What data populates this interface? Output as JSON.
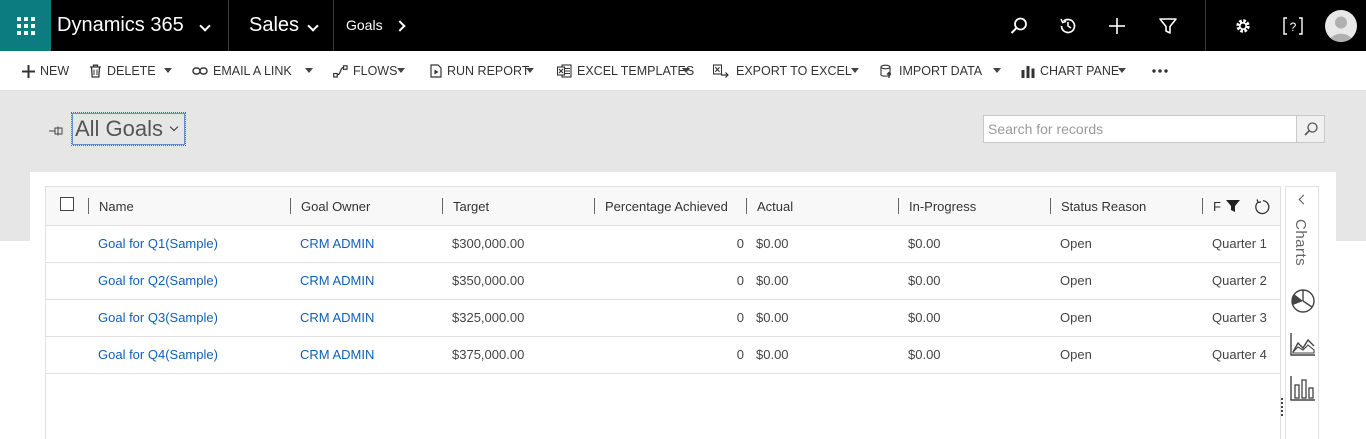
{
  "app": {
    "name": "Dynamics 365",
    "area": "Sales",
    "breadcrumb": "Goals"
  },
  "toolbar": {
    "new": "NEW",
    "delete": "DELETE",
    "email_link": "EMAIL A LINK",
    "flows": "FLOWS",
    "run_report": "RUN REPORT",
    "excel_templates": "EXCEL TEMPLATES",
    "export_excel": "EXPORT TO EXCEL",
    "import_data": "IMPORT DATA",
    "chart_pane": "CHART PANE"
  },
  "view": {
    "title": "All Goals"
  },
  "search": {
    "placeholder": "Search for records"
  },
  "grid": {
    "columns": [
      "Name",
      "Goal Owner",
      "Target",
      "Percentage Achieved",
      "Actual",
      "In-Progress",
      "Status Reason",
      "F"
    ],
    "rows": [
      {
        "name": "Goal for Q1(Sample)",
        "owner": "CRM ADMIN",
        "target": "$300,000.00",
        "pct": "0",
        "actual": "$0.00",
        "inprogress": "$0.00",
        "status": "Open",
        "period": "Quarter 1"
      },
      {
        "name": "Goal for Q2(Sample)",
        "owner": "CRM ADMIN",
        "target": "$350,000.00",
        "pct": "0",
        "actual": "$0.00",
        "inprogress": "$0.00",
        "status": "Open",
        "period": "Quarter 2"
      },
      {
        "name": "Goal for Q3(Sample)",
        "owner": "CRM ADMIN",
        "target": "$325,000.00",
        "pct": "0",
        "actual": "$0.00",
        "inprogress": "$0.00",
        "status": "Open",
        "period": "Quarter 3"
      },
      {
        "name": "Goal for Q4(Sample)",
        "owner": "CRM ADMIN",
        "target": "$375,000.00",
        "pct": "0",
        "actual": "$0.00",
        "inprogress": "$0.00",
        "status": "Open",
        "period": "Quarter 4"
      }
    ]
  },
  "charts_pane": {
    "label": "Charts",
    "icons": [
      "pie-chart-icon",
      "area-chart-icon",
      "bar-chart-icon"
    ]
  },
  "colors": {
    "brand": "#0d7c80",
    "navbar": "#000000",
    "link": "#1160b7"
  }
}
